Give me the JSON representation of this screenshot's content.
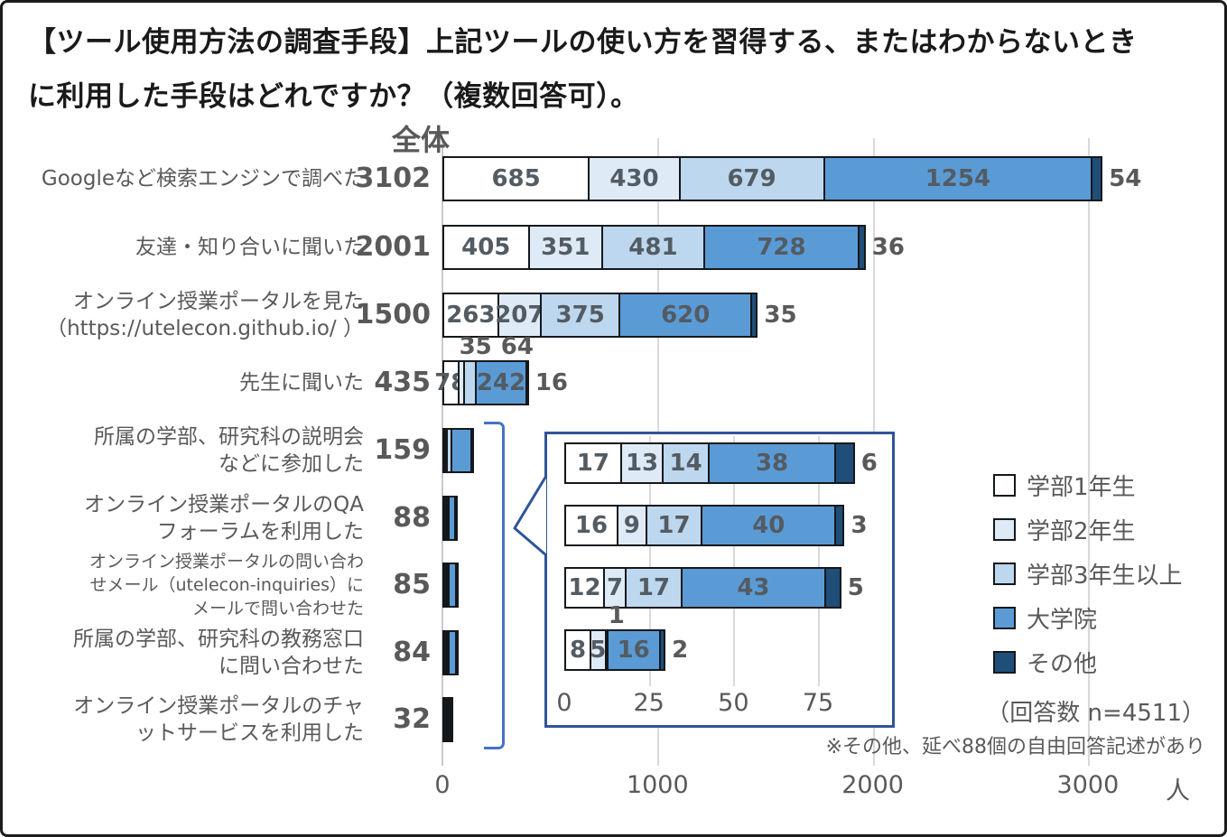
{
  "title": "【ツール使用方法の調査手段】上記ツールの使い方を習得する、またはわからないとき\nに利用した手段はどれですか？（複数回答可）。",
  "totals_header": "全体",
  "legend": {
    "items": [
      {
        "label": "学部1年生",
        "color": "#ffffff"
      },
      {
        "label": "学部2年生",
        "color": "#deebf7"
      },
      {
        "label": "学部3年生以上",
        "color": "#bdd7ee"
      },
      {
        "label": "大学院",
        "color": "#5b9bd5"
      },
      {
        "label": "その他",
        "color": "#1f4e79"
      }
    ],
    "note": "（回答数 n=4511）",
    "footnote": "※その他、延べ88個の自由回答記述があり"
  },
  "chart_data": {
    "type": "bar",
    "subtype": "horizontal-stacked",
    "series_names": [
      "学部1年生",
      "学部2年生",
      "学部3年生以上",
      "大学院",
      "その他"
    ],
    "series_colors": [
      "#ffffff",
      "#deebf7",
      "#bdd7ee",
      "#5b9bd5",
      "#1f4e79"
    ],
    "x_axis": {
      "ticks": [
        0,
        1000,
        2000,
        3000
      ],
      "unit": "人",
      "max": 3400
    },
    "rows": [
      {
        "label": "Googleなど検索エンジンで調べた",
        "total": 3102,
        "values": [
          685,
          430,
          679,
          1254,
          54
        ],
        "label_positions": [
          "center",
          "center",
          "center",
          "center",
          "right"
        ]
      },
      {
        "label": "友達・知り合いに聞いた",
        "total": 2001,
        "values": [
          405,
          351,
          481,
          728,
          36
        ],
        "label_positions": [
          "center",
          "center",
          "center",
          "center",
          "right"
        ]
      },
      {
        "label": "オンライン授業ポータルを見た\n（https://utelecon.github.io/ ）",
        "total": 1500,
        "values": [
          263,
          207,
          375,
          620,
          35
        ],
        "label_positions": [
          "center",
          "center",
          "center",
          "center",
          "right"
        ]
      },
      {
        "label": "先生に聞いた",
        "total": 435,
        "values": [
          78,
          35,
          64,
          242,
          16
        ],
        "label_positions": [
          "center",
          "above",
          "above",
          "center",
          "right"
        ]
      },
      {
        "label": "所属の学部、研究科の説明会\nなどに参加した",
        "total": 159,
        "values": [
          17,
          8,
          29,
          99,
          6
        ],
        "values_estimated_from_pixels": true,
        "label_positions": [
          "none",
          "none",
          "none",
          "none",
          "none"
        ]
      },
      {
        "label": "オンライン授業ポータルのQA\nフォーラムを利用した",
        "total": 88,
        "values": [
          17,
          13,
          14,
          38,
          6
        ],
        "label_positions": [
          "none",
          "none",
          "none",
          "none",
          "none"
        ]
      },
      {
        "label": "オンライン授業ポータルの問い合わ\nせメール（utelecon-inquiries）に\nメールで問い合わせた",
        "total": 85,
        "values": [
          16,
          9,
          17,
          40,
          3
        ],
        "label_positions": [
          "none",
          "none",
          "none",
          "none",
          "none"
        ]
      },
      {
        "label": "所属の学部、研究科の教務窓口\nに問い合わせた",
        "total": 84,
        "values": [
          12,
          7,
          17,
          43,
          5
        ],
        "label_positions": [
          "none",
          "none",
          "none",
          "none",
          "none"
        ]
      },
      {
        "label": "オンライン授業ポータルのチャ\nットサービスを利用した",
        "total": 32,
        "values": [
          8,
          5,
          1,
          16,
          2
        ],
        "label_positions": [
          "none",
          "none",
          "none",
          "none",
          "none"
        ]
      }
    ],
    "inset": {
      "x_axis": {
        "ticks": [
          0,
          25,
          50,
          75
        ]
      },
      "rows": [
        {
          "total": 88,
          "values": [
            17,
            13,
            14,
            38,
            6
          ],
          "label_positions": [
            "center",
            "center",
            "center",
            "center",
            "right"
          ]
        },
        {
          "total": 85,
          "values": [
            16,
            9,
            17,
            40,
            3
          ],
          "label_positions": [
            "center",
            "center",
            "center",
            "center",
            "right"
          ]
        },
        {
          "total": 84,
          "values": [
            12,
            7,
            17,
            43,
            5
          ],
          "label_positions": [
            "center",
            "center",
            "center",
            "center",
            "right"
          ]
        },
        {
          "total": 32,
          "values": [
            8,
            5,
            1,
            16,
            2
          ],
          "label_positions": [
            "center",
            "center",
            "above",
            "center",
            "right"
          ]
        }
      ]
    }
  }
}
